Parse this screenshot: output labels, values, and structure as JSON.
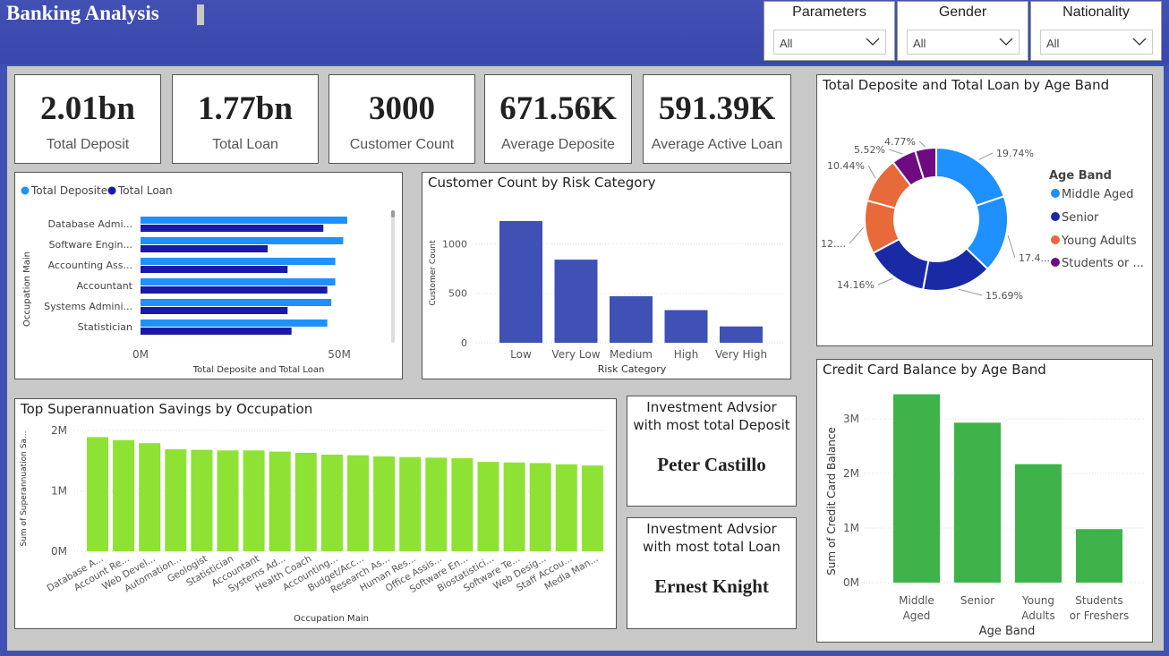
{
  "header": {
    "title": "Banking Analysis"
  },
  "slicers": [
    {
      "label": "Parameters",
      "value": "All"
    },
    {
      "label": "Gender",
      "value": "All"
    },
    {
      "label": "Nationality",
      "value": "All"
    }
  ],
  "kpis": [
    {
      "value": "2.01bn",
      "label": "Total Deposit"
    },
    {
      "value": "1.77bn",
      "label": "Total Loan"
    },
    {
      "value": "3000",
      "label": "Customer Count"
    },
    {
      "value": "671.56K",
      "label": "Average Deposite"
    },
    {
      "value": "591.39K",
      "label": "Average Active Loan"
    }
  ],
  "colors": {
    "deposit": "#1e90ff",
    "loan": "#1a1aa6",
    "risk": "#3f51b5",
    "super": "#8ee234",
    "credit": "#3db34a",
    "middle": "#1e90ff",
    "senior": "#1a2aa6",
    "young": "#e8693a",
    "students": "#6e0a82"
  },
  "occupation_chart": {
    "legend": [
      "Total Deposite",
      "Total Loan"
    ],
    "ylabel": "Occupation Main",
    "xlabel": "Total Deposite and Total Loan",
    "xticks": [
      "0M",
      "50M"
    ],
    "chart_data": {
      "type": "bar",
      "orientation": "horizontal",
      "categories": [
        "Database Admi...",
        "Software Engin...",
        "Accounting Ass...",
        "Accountant",
        "Systems Admini...",
        "Statistician"
      ],
      "series": [
        {
          "name": "Total Deposite",
          "values": [
            52,
            51,
            49,
            49,
            48,
            47
          ]
        },
        {
          "name": "Total Loan",
          "values": [
            46,
            32,
            37,
            47,
            37,
            38
          ]
        }
      ],
      "xlim": [
        0,
        60
      ]
    }
  },
  "risk_chart": {
    "title": "Customer Count by Risk Category",
    "ylabel": "Customer Count",
    "xlabel": "Risk Category",
    "yticks": [
      "0",
      "500",
      "1000"
    ],
    "chart_data": {
      "type": "bar",
      "categories": [
        "Low",
        "Very Low",
        "Medium",
        "High",
        "Very High"
      ],
      "values": [
        1230,
        840,
        470,
        330,
        165
      ],
      "ylim": [
        0,
        1230
      ]
    }
  },
  "donut_chart": {
    "title": "Total Deposite and Total Loan by Age Band",
    "legend_title": "Age Band",
    "legend": [
      "Middle Aged",
      "Senior",
      "Young Adults",
      "Students or ..."
    ],
    "labels": [
      "19.74%",
      "17.4...",
      "15.69%",
      "14.16%",
      "12....",
      "10.44%",
      "5.52%",
      "4.77%"
    ],
    "chart_data": {
      "type": "pie",
      "categories": [
        "Middle Aged",
        "Middle Aged",
        "Senior",
        "Senior",
        "Young Adults",
        "Young Adults",
        "Students or Freshers",
        "Students or Freshers"
      ],
      "values": [
        19.74,
        17.4,
        15.69,
        14.16,
        12.0,
        10.44,
        5.52,
        4.77
      ]
    }
  },
  "super_chart": {
    "title": "Top Superannuation Savings by Occupation",
    "ylabel": "Sum of Superannuation Sa...",
    "xlabel": "Occupation Main",
    "yticks": [
      "0M",
      "1M",
      "2M"
    ],
    "chart_data": {
      "type": "bar",
      "categories": [
        "Database A...",
        "Account Re...",
        "Web Devel...",
        "Automation...",
        "Geologist",
        "Statistician",
        "Accountant",
        "Systems Ad...",
        "Health Coach",
        "Accounting...",
        "Budget/Acc...",
        "Research As...",
        "Human Res...",
        "Office Assis...",
        "Software En...",
        "Biostatistici...",
        "Software Te...",
        "Web Desig...",
        "Staff Accou...",
        "Media Man..."
      ],
      "values": [
        1.89,
        1.84,
        1.79,
        1.69,
        1.68,
        1.67,
        1.67,
        1.65,
        1.63,
        1.6,
        1.59,
        1.57,
        1.56,
        1.55,
        1.54,
        1.48,
        1.47,
        1.46,
        1.44,
        1.42
      ],
      "ylim": [
        0,
        2
      ]
    }
  },
  "advisors": [
    {
      "title_line1": "Investment Advsior",
      "title_line2": "with most total Deposit",
      "name": "Peter Castillo"
    },
    {
      "title_line1": "Investment Advsior",
      "title_line2": "with most total Loan",
      "name": "Ernest Knight"
    }
  ],
  "credit_chart": {
    "title": "Credit Card Balance by Age Band",
    "ylabel": "Sum of Credit Card Balance",
    "xlabel": "Age Band",
    "yticks": [
      "0M",
      "1M",
      "2M",
      "3M"
    ],
    "category_lines": [
      [
        "Middle",
        "Aged"
      ],
      [
        "Senior",
        ""
      ],
      [
        "Young",
        "Adults"
      ],
      [
        "Students",
        "or Freshers"
      ]
    ],
    "chart_data": {
      "type": "bar",
      "categories": [
        "Middle Aged",
        "Senior",
        "Young Adults",
        "Students or Freshers"
      ],
      "values": [
        3.45,
        2.93,
        2.17,
        0.98
      ],
      "ylim": [
        0,
        3.5
      ]
    }
  }
}
